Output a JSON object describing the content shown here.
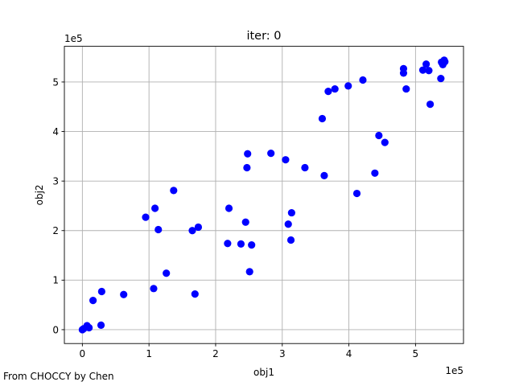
{
  "chart_data": {
    "type": "scatter",
    "title": "iter: 0",
    "xlabel": "obj1",
    "ylabel": "obj2",
    "x_multiplier_label": "1e5",
    "y_multiplier_label": "1e5",
    "xlim": [
      -0.27,
      5.72
    ],
    "ylim": [
      -0.28,
      5.72
    ],
    "x_ticks": [
      0,
      1,
      2,
      3,
      4,
      5
    ],
    "y_ticks": [
      0,
      1,
      2,
      3,
      4,
      5
    ],
    "grid": true,
    "marker_color": "#0000ff",
    "points_x": [
      0.0,
      0.02,
      0.07,
      0.1,
      0.16,
      0.28,
      0.29,
      0.62,
      0.95,
      1.07,
      1.09,
      1.14,
      1.26,
      1.37,
      1.65,
      1.69,
      1.74,
      2.18,
      2.2,
      2.38,
      2.45,
      2.47,
      2.48,
      2.51,
      2.54,
      2.83,
      3.05,
      3.09,
      3.13,
      3.14,
      3.34,
      3.6,
      3.63,
      3.69,
      3.79,
      3.99,
      4.12,
      4.21,
      4.39,
      4.45,
      4.54,
      4.82,
      4.82,
      4.86,
      5.11,
      5.16,
      5.2,
      5.22,
      5.38,
      5.39,
      5.41,
      5.43,
      5.44
    ],
    "points_y": [
      0.0,
      0.02,
      0.08,
      0.04,
      0.59,
      0.09,
      0.77,
      0.71,
      2.27,
      0.83,
      2.45,
      2.02,
      1.14,
      2.81,
      2.0,
      0.72,
      2.07,
      1.74,
      2.45,
      1.73,
      2.17,
      3.27,
      3.55,
      1.17,
      1.71,
      3.56,
      3.43,
      2.13,
      1.81,
      2.36,
      3.27,
      4.26,
      3.11,
      4.81,
      4.86,
      4.92,
      2.75,
      5.04,
      3.16,
      3.92,
      3.78,
      5.27,
      5.18,
      4.86,
      5.24,
      5.36,
      5.23,
      4.55,
      5.07,
      5.4,
      5.35,
      5.44,
      5.41
    ]
  },
  "footer_text": "From CHOCCY by Chen"
}
